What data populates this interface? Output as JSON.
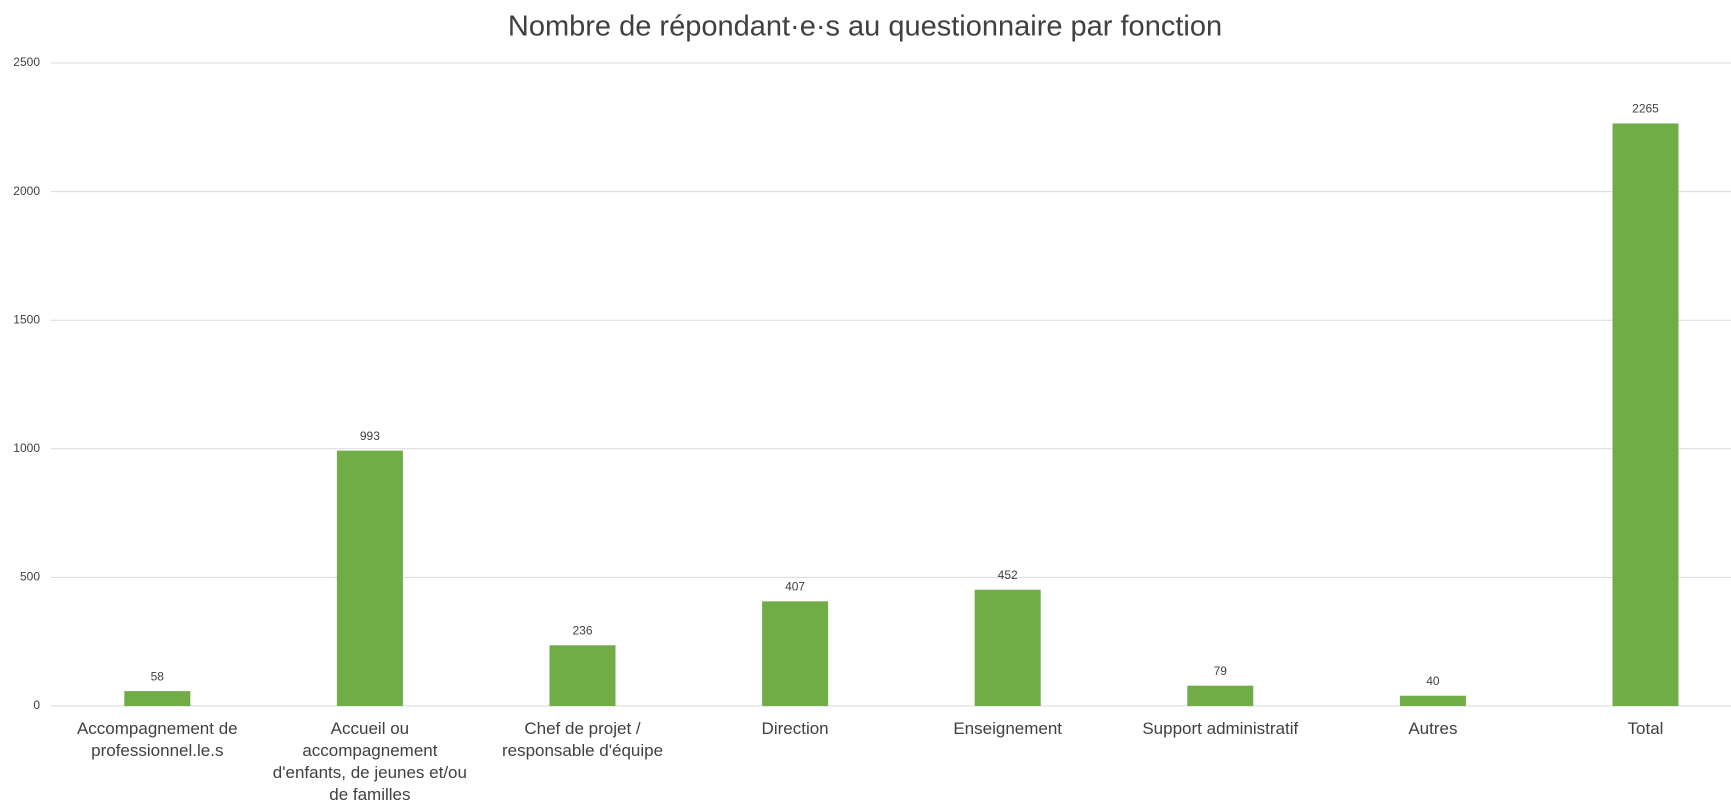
{
  "chart_data": {
    "type": "bar",
    "title": "Nombre de répondant·e·s  au questionnaire par fonction",
    "categories": [
      "Accompagnement de professionnel.le.s",
      "Accueil ou accompagnement d'enfants, de jeunes et/ou de familles",
      "Chef de projet / responsable d'équipe",
      "Direction",
      "Enseignement",
      "Support administratif",
      "Autres",
      "Total"
    ],
    "values": [
      58,
      993,
      236,
      407,
      452,
      79,
      40,
      2265
    ],
    "color": "#70ad47",
    "ylim": [
      0,
      2500
    ],
    "yticks": [
      0,
      500,
      1000,
      1500,
      2000,
      2500
    ],
    "grid": true
  }
}
